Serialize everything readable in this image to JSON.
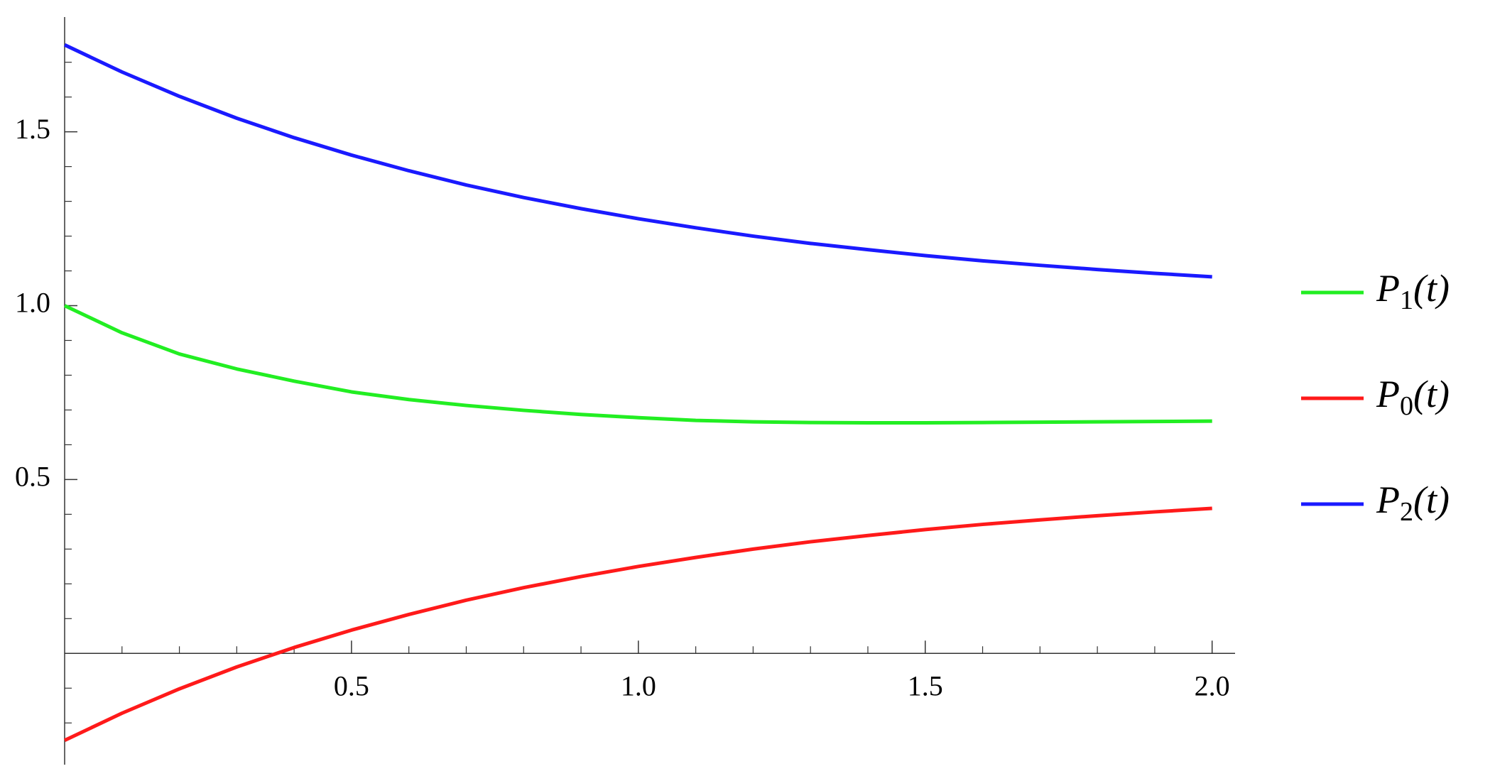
{
  "chart_data": {
    "type": "line",
    "x": [
      0,
      0.1,
      0.2,
      0.3,
      0.4,
      0.5,
      0.6,
      0.7,
      0.8,
      0.9,
      1.0,
      1.1,
      1.2,
      1.3,
      1.4,
      1.5,
      1.6,
      1.7,
      1.8,
      1.9,
      2.0
    ],
    "series": [
      {
        "name": "P1(t)",
        "color": "#22ee22",
        "values": [
          1.0,
          0.922,
          0.861,
          0.818,
          0.783,
          0.752,
          0.73,
          0.713,
          0.699,
          0.687,
          0.678,
          0.67,
          0.666,
          0.664,
          0.663,
          0.663,
          0.664,
          0.665,
          0.666,
          0.667,
          0.668
        ]
      },
      {
        "name": "P0(t)",
        "color": "#ff1a1a",
        "values": [
          -0.25,
          -0.172,
          -0.102,
          -0.039,
          0.017,
          0.067,
          0.112,
          0.153,
          0.189,
          0.221,
          0.25,
          0.276,
          0.3,
          0.321,
          0.339,
          0.356,
          0.371,
          0.384,
          0.396,
          0.407,
          0.417
        ]
      },
      {
        "name": "P2(t)",
        "color": "#1a1aff",
        "values": [
          1.75,
          1.672,
          1.602,
          1.539,
          1.483,
          1.433,
          1.388,
          1.347,
          1.311,
          1.279,
          1.25,
          1.224,
          1.2,
          1.179,
          1.161,
          1.144,
          1.129,
          1.116,
          1.104,
          1.093,
          1.083
        ]
      }
    ],
    "xlim": [
      0,
      2.04
    ],
    "ylim": [
      -0.32,
      1.83
    ],
    "xticks": [
      0.5,
      {
        "value": 1,
        "label": "1.0"
      },
      1.5,
      {
        "value": 2,
        "label": "2.0"
      }
    ],
    "yticks": [
      0.5,
      {
        "value": 1,
        "label": "1.0"
      },
      1.5
    ],
    "xminorticks": [
      0.1,
      0.2,
      0.3,
      0.4,
      0.6,
      0.7,
      0.8,
      0.9,
      1.1,
      1.2,
      1.3,
      1.4,
      1.6,
      1.7,
      1.8,
      1.9
    ],
    "yminorticks": [
      -0.2,
      -0.1,
      0.1,
      0.2,
      0.3,
      0.4,
      0.6,
      0.7,
      0.8,
      0.9,
      1.1,
      1.2,
      1.3,
      1.4,
      1.6,
      1.7
    ],
    "legend": "right",
    "grid": false
  }
}
